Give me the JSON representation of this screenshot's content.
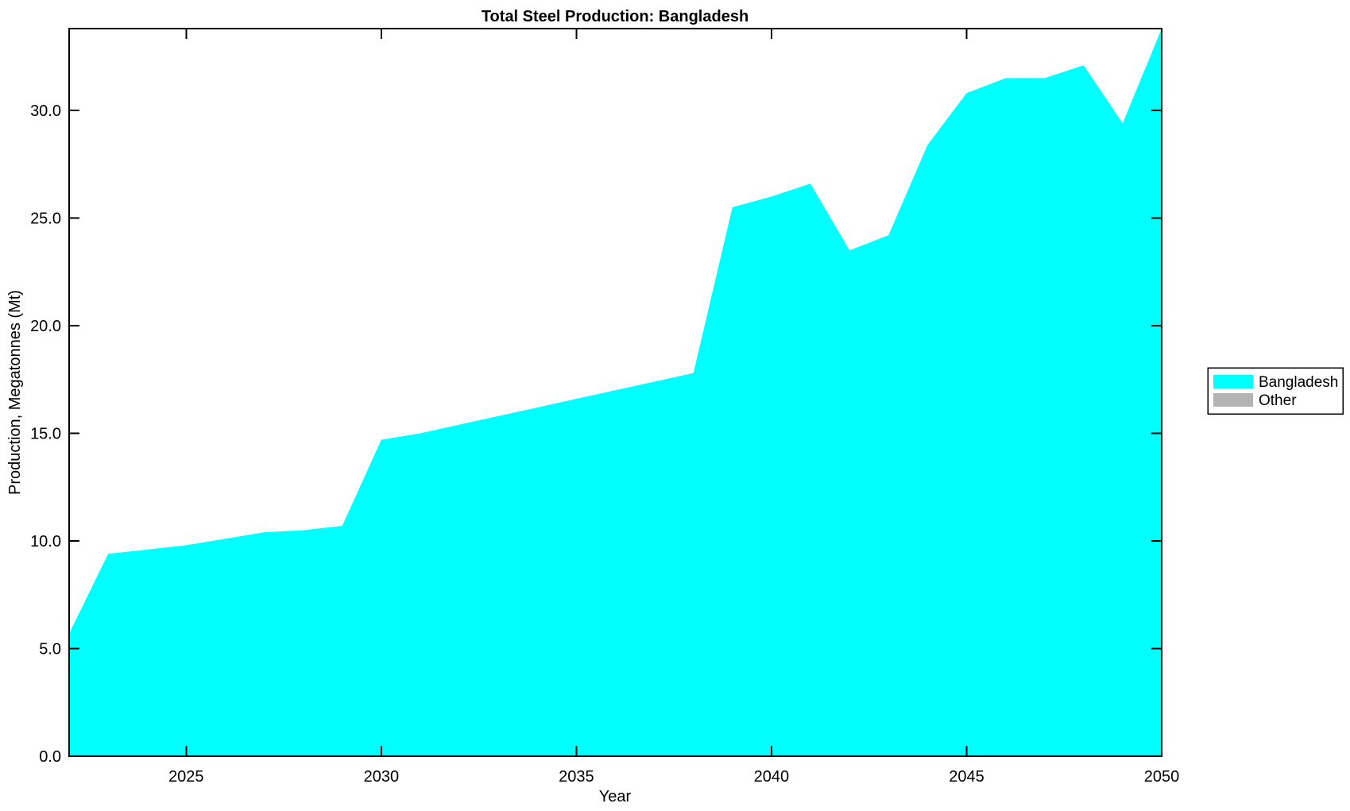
{
  "page": {
    "background": "#ffffff",
    "text_color": "#000000"
  },
  "chart_data": {
    "type": "area",
    "title": "Total Steel Production: Bangladesh",
    "xlabel": "Year",
    "ylabel": "Production, Megatonnes (Mt)",
    "x": [
      2022,
      2023,
      2024,
      2025,
      2026,
      2027,
      2028,
      2029,
      2030,
      2031,
      2032,
      2033,
      2034,
      2035,
      2036,
      2037,
      2038,
      2039,
      2040,
      2041,
      2042,
      2043,
      2044,
      2045,
      2046,
      2047,
      2048,
      2049,
      2050
    ],
    "series": [
      {
        "name": "Bangladesh",
        "color": "#00ffff",
        "values": [
          5.7,
          9.4,
          9.6,
          9.8,
          10.1,
          10.4,
          10.5,
          10.7,
          14.7,
          15.0,
          15.4,
          15.8,
          16.2,
          16.6,
          17.0,
          17.4,
          17.8,
          25.5,
          26.0,
          26.6,
          23.5,
          24.2,
          28.4,
          30.8,
          31.5,
          31.5,
          32.1,
          29.4,
          33.8
        ]
      },
      {
        "name": "Other",
        "color": "#b3b3b3",
        "values": []
      }
    ],
    "xlim": [
      2022,
      2050
    ],
    "ylim": [
      0,
      33.8
    ],
    "xticks": [
      {
        "v": 2025,
        "label": "2025"
      },
      {
        "v": 2030,
        "label": "2030"
      },
      {
        "v": 2035,
        "label": "2035"
      },
      {
        "v": 2040,
        "label": "2040"
      },
      {
        "v": 2045,
        "label": "2045"
      },
      {
        "v": 2050,
        "label": "2050"
      }
    ],
    "yticks": [
      {
        "v": 0,
        "label": "0.0"
      },
      {
        "v": 5,
        "label": "5.0"
      },
      {
        "v": 10,
        "label": "10.0"
      },
      {
        "v": 15,
        "label": "15.0"
      },
      {
        "v": 20,
        "label": "20.0"
      },
      {
        "v": 25,
        "label": "25.0"
      },
      {
        "v": 30,
        "label": "30.0"
      }
    ],
    "grid": false,
    "tick_direction": "in",
    "axis_color": "#000000",
    "legend": {
      "position": "outside-right-center",
      "entries": [
        {
          "label": "Bangladesh",
          "color": "#00ffff"
        },
        {
          "label": "Other",
          "color": "#b3b3b3"
        }
      ]
    }
  }
}
